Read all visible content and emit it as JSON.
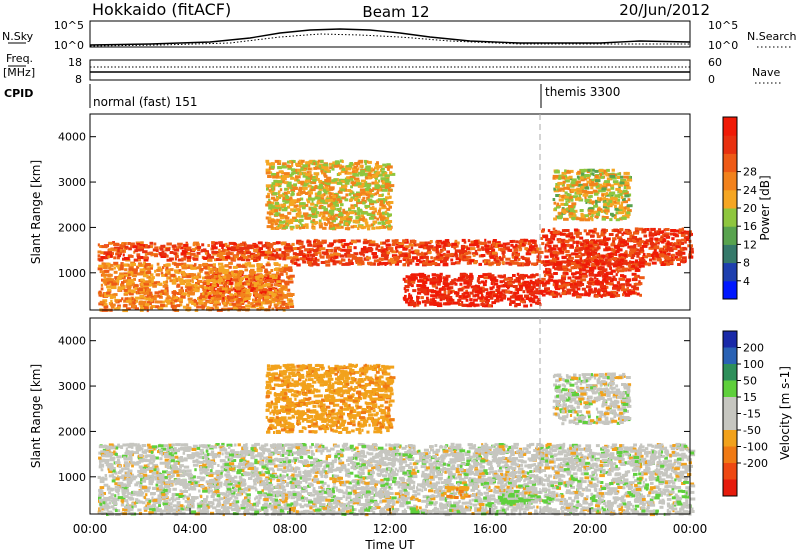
{
  "header": {
    "station": "Hokkaido (fitACF)",
    "beam": "Beam 12",
    "date": "20/Jun/2012"
  },
  "top_panels": {
    "nsky_label": "N.Sky",
    "nsearch_label": "N.Search",
    "nsky_ticks": [
      "10^5",
      "10^0"
    ],
    "nsearch_ticks": [
      "10^5",
      "10^0"
    ],
    "freq_label": "Freq.",
    "freq_unit": "[MHz]",
    "freq_ticks": [
      "18",
      "8"
    ],
    "nave_label": "Nave",
    "nave_ticks": [
      "60",
      "0"
    ],
    "cpid_label": "CPID",
    "cpid_modes": [
      {
        "label": "normal (fast) 151",
        "start_hour": 0
      },
      {
        "label": "themis 3300",
        "start_hour": 18
      }
    ]
  },
  "chart_data": [
    {
      "type": "heatmap",
      "name": "power",
      "xlabel": "",
      "ylabel": "Slant Range [km]",
      "xlim": [
        0,
        24
      ],
      "ylim": [
        180,
        4500
      ],
      "yticks": [
        1000,
        2000,
        3000,
        4000
      ],
      "colorbar": {
        "label": "Power [dB]",
        "ticks": [
          "4",
          "8",
          "12",
          "16",
          "20",
          "24",
          "28"
        ],
        "colors": [
          "#0018ff",
          "#1e3fae",
          "#35796a",
          "#58a34e",
          "#8ec63e",
          "#f5a623",
          "#f2821c",
          "#ee5a16",
          "#e8300f",
          "#f01a06"
        ]
      },
      "regions": [
        {
          "t0": 0.3,
          "t1": 8.0,
          "r0": 1300,
          "r1": 1700,
          "level": 24
        },
        {
          "t0": 8.0,
          "t1": 18.0,
          "r0": 1200,
          "r1": 1750,
          "level": 25
        },
        {
          "t0": 18.0,
          "t1": 24.0,
          "r0": 1200,
          "r1": 2000,
          "level": 26
        },
        {
          "t0": 4.5,
          "t1": 7.5,
          "r0": 400,
          "r1": 1000,
          "level": 28
        },
        {
          "t0": 12.5,
          "t1": 18.0,
          "r0": 300,
          "r1": 1000,
          "level": 28
        },
        {
          "t0": 18.0,
          "t1": 22.0,
          "r0": 500,
          "r1": 1300,
          "level": 27
        },
        {
          "t0": 7.0,
          "t1": 12.0,
          "r0": 2000,
          "r1": 3500,
          "level": 17
        },
        {
          "t0": 18.5,
          "t1": 21.5,
          "r0": 2200,
          "r1": 3300,
          "level": 16
        },
        {
          "t0": 0.3,
          "t1": 8.0,
          "r0": 200,
          "r1": 1250,
          "level": 20
        }
      ]
    },
    {
      "type": "heatmap",
      "name": "velocity",
      "xlabel": "Time UT",
      "ylabel": "Slant Range [km]",
      "xlim": [
        0,
        24
      ],
      "ylim": [
        180,
        4500
      ],
      "xticks": [
        "00:00",
        "04:00",
        "08:00",
        "12:00",
        "16:00",
        "20:00",
        "00:00"
      ],
      "yticks": [
        1000,
        2000,
        3000,
        4000
      ],
      "colorbar": {
        "label": "Velocity [m s-1]",
        "ticks": [
          "200",
          "100",
          "50",
          "15",
          "-15",
          "-50",
          "-100",
          "-200"
        ],
        "colors": [
          "#1a2aa8",
          "#2a62b4",
          "#2e8f5a",
          "#5fd03c",
          "#c6c6c0",
          "#c6c6c0",
          "#f2a21c",
          "#f07a14",
          "#ee4812",
          "#e61b0c"
        ]
      },
      "regions": [
        {
          "t0": 0.3,
          "t1": 24.0,
          "r0": 200,
          "r1": 1750,
          "level": 0
        },
        {
          "t0": 7.0,
          "t1": 12.0,
          "r0": 2000,
          "r1": 3500,
          "level": -40
        },
        {
          "t0": 18.5,
          "t1": 21.5,
          "r0": 2200,
          "r1": 3300,
          "level": 0
        },
        {
          "t0": 14.0,
          "t1": 15.0,
          "r0": 560,
          "r1": 800,
          "level": -45
        },
        {
          "t0": 16.3,
          "t1": 18.5,
          "r0": 450,
          "r1": 650,
          "level": 30
        }
      ]
    }
  ]
}
